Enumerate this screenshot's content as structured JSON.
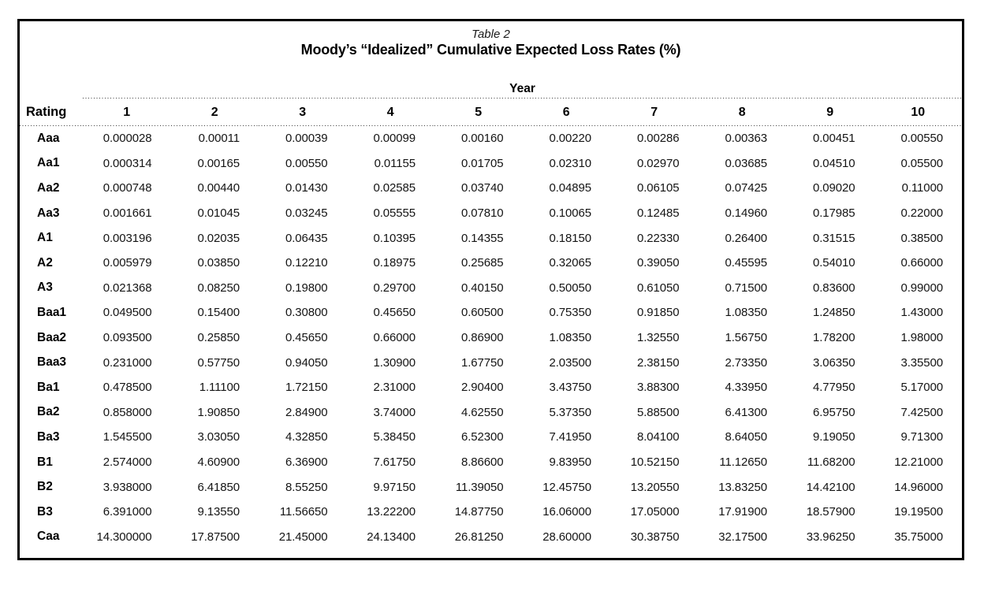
{
  "document": {
    "caption": "Table 2",
    "title": "Moody’s “Idealized” Cumulative Expected Loss Rates (%)"
  },
  "table": {
    "group_header": "Year",
    "rating_header": "Rating",
    "year_columns": [
      "1",
      "2",
      "3",
      "4",
      "5",
      "6",
      "7",
      "8",
      "9",
      "10"
    ],
    "rows": [
      {
        "rating": "Aaa",
        "values": [
          "0.000028",
          "0.00011",
          "0.00039",
          "0.00099",
          "0.00160",
          "0.00220",
          "0.00286",
          "0.00363",
          "0.00451",
          "0.00550"
        ]
      },
      {
        "rating": "Aa1",
        "values": [
          "0.000314",
          "0.00165",
          "0.00550",
          "0.01155",
          "0.01705",
          "0.02310",
          "0.02970",
          "0.03685",
          "0.04510",
          "0.05500"
        ]
      },
      {
        "rating": "Aa2",
        "values": [
          "0.000748",
          "0.00440",
          "0.01430",
          "0.02585",
          "0.03740",
          "0.04895",
          "0.06105",
          "0.07425",
          "0.09020",
          "0.11000"
        ]
      },
      {
        "rating": "Aa3",
        "values": [
          "0.001661",
          "0.01045",
          "0.03245",
          "0.05555",
          "0.07810",
          "0.10065",
          "0.12485",
          "0.14960",
          "0.17985",
          "0.22000"
        ]
      },
      {
        "rating": "A1",
        "values": [
          "0.003196",
          "0.02035",
          "0.06435",
          "0.10395",
          "0.14355",
          "0.18150",
          "0.22330",
          "0.26400",
          "0.31515",
          "0.38500"
        ]
      },
      {
        "rating": "A2",
        "values": [
          "0.005979",
          "0.03850",
          "0.12210",
          "0.18975",
          "0.25685",
          "0.32065",
          "0.39050",
          "0.45595",
          "0.54010",
          "0.66000"
        ]
      },
      {
        "rating": "A3",
        "values": [
          "0.021368",
          "0.08250",
          "0.19800",
          "0.29700",
          "0.40150",
          "0.50050",
          "0.61050",
          "0.71500",
          "0.83600",
          "0.99000"
        ]
      },
      {
        "rating": "Baa1",
        "values": [
          "0.049500",
          "0.15400",
          "0.30800",
          "0.45650",
          "0.60500",
          "0.75350",
          "0.91850",
          "1.08350",
          "1.24850",
          "1.43000"
        ]
      },
      {
        "rating": "Baa2",
        "values": [
          "0.093500",
          "0.25850",
          "0.45650",
          "0.66000",
          "0.86900",
          "1.08350",
          "1.32550",
          "1.56750",
          "1.78200",
          "1.98000"
        ]
      },
      {
        "rating": "Baa3",
        "values": [
          "0.231000",
          "0.57750",
          "0.94050",
          "1.30900",
          "1.67750",
          "2.03500",
          "2.38150",
          "2.73350",
          "3.06350",
          "3.35500"
        ]
      },
      {
        "rating": "Ba1",
        "values": [
          "0.478500",
          "1.11100",
          "1.72150",
          "2.31000",
          "2.90400",
          "3.43750",
          "3.88300",
          "4.33950",
          "4.77950",
          "5.17000"
        ]
      },
      {
        "rating": "Ba2",
        "values": [
          "0.858000",
          "1.90850",
          "2.84900",
          "3.74000",
          "4.62550",
          "5.37350",
          "5.88500",
          "6.41300",
          "6.95750",
          "7.42500"
        ]
      },
      {
        "rating": "Ba3",
        "values": [
          "1.545500",
          "3.03050",
          "4.32850",
          "5.38450",
          "6.52300",
          "7.41950",
          "8.04100",
          "8.64050",
          "9.19050",
          "9.71300"
        ]
      },
      {
        "rating": "B1",
        "values": [
          "2.574000",
          "4.60900",
          "6.36900",
          "7.61750",
          "8.86600",
          "9.83950",
          "10.52150",
          "11.12650",
          "11.68200",
          "12.21000"
        ]
      },
      {
        "rating": "B2",
        "values": [
          "3.938000",
          "6.41850",
          "8.55250",
          "9.97150",
          "11.39050",
          "12.45750",
          "13.20550",
          "13.83250",
          "14.42100",
          "14.96000"
        ]
      },
      {
        "rating": "B3",
        "values": [
          "6.391000",
          "9.13550",
          "11.56650",
          "13.22200",
          "14.87750",
          "16.06000",
          "17.05000",
          "17.91900",
          "18.57900",
          "19.19500"
        ]
      },
      {
        "rating": "Caa",
        "values": [
          "14.300000",
          "17.87500",
          "21.45000",
          "24.13400",
          "26.81250",
          "28.60000",
          "30.38750",
          "32.17500",
          "33.96250",
          "35.75000"
        ]
      }
    ]
  }
}
